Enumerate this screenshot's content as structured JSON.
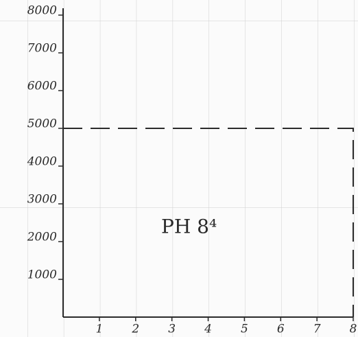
{
  "chart_data": {
    "type": "line",
    "annotation": "PH 8⁴",
    "x": [
      0,
      8,
      8
    ],
    "values": [
      5000,
      5000,
      0
    ],
    "color": "#2a2a2a",
    "dashed": true,
    "xlim": [
      0,
      8
    ],
    "xticks": [
      1,
      2,
      3,
      4,
      5,
      6,
      7,
      8
    ],
    "ylim": [
      0,
      8000
    ],
    "yticks": [
      1000,
      2000,
      3000,
      4000,
      5000,
      6000,
      7000,
      8000
    ]
  }
}
